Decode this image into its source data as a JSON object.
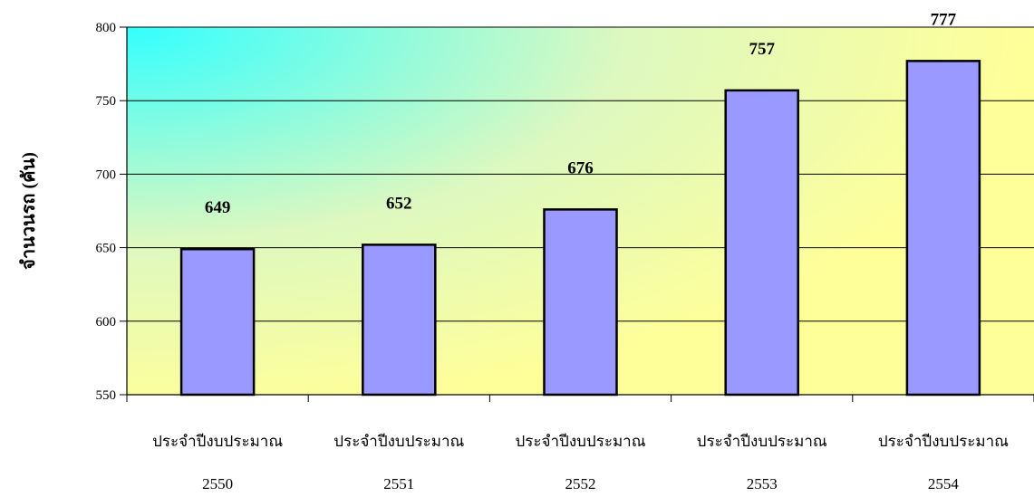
{
  "chart_data": {
    "type": "bar",
    "categories": [
      [
        "ประจำปีงบประมาณ",
        "2550"
      ],
      [
        "ประจำปีงบประมาณ",
        "2551"
      ],
      [
        "ประจำปีงบประมาณ",
        "2552"
      ],
      [
        "ประจำปีงบประมาณ",
        "2553"
      ],
      [
        "ประจำปีงบประมาณ",
        "2554"
      ]
    ],
    "values": [
      649,
      652,
      676,
      757,
      777
    ],
    "data_labels": [
      "649",
      "652",
      "676",
      "757",
      "777"
    ],
    "ylabel": "จำนวนรถ (คัน)",
    "ylim": [
      550,
      800
    ],
    "yticks": [
      550,
      600,
      650,
      700,
      750,
      800
    ],
    "grid": true,
    "legend": "none",
    "colors": {
      "bar_fill": "#9999ff",
      "bar_stroke": "#000000",
      "gradient_corner": "#33ffff",
      "gradient_base": "#ffff99",
      "gridline": "#000000"
    }
  }
}
